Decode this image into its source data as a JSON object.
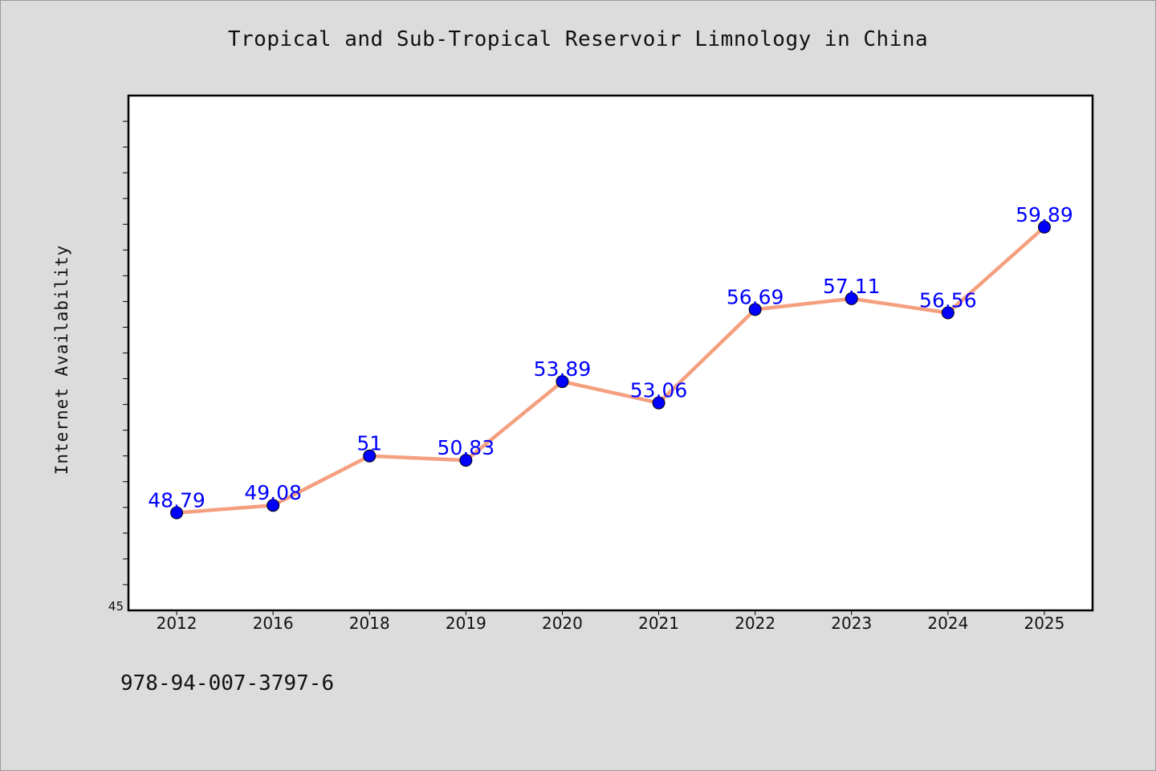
{
  "chart_data": {
    "type": "line",
    "title": "Tropical and Sub-Tropical Reservoir Limnology in China",
    "xlabel": "",
    "ylabel": "Internet Availability",
    "categories": [
      "2012",
      "2016",
      "2018",
      "2019",
      "2020",
      "2021",
      "2022",
      "2023",
      "2024",
      "2025"
    ],
    "series": [
      {
        "values": [
          48.79,
          49.08,
          51,
          50.83,
          53.89,
          53.06,
          56.69,
          57.11,
          56.56,
          59.89
        ],
        "labels": [
          "48.79",
          "49.08",
          "51",
          "50.83",
          "53.89",
          "53.06",
          "56.69",
          "57.11",
          "56.56",
          "59.89"
        ],
        "line_color": "#f4a07f",
        "marker_color": "#0000ff"
      }
    ],
    "ylim": [
      45,
      65
    ],
    "y_tick_labels": [
      "45"
    ],
    "grid": false,
    "legend": "none"
  },
  "footer": {
    "isbn": "978-94-007-3797-6"
  }
}
